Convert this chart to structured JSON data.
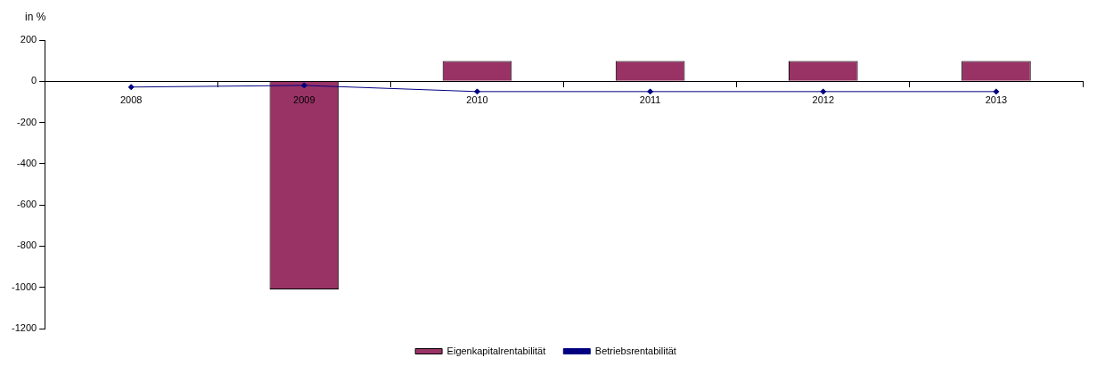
{
  "chart_data": {
    "type": "bar",
    "ylabel": "in %",
    "categories": [
      "2008",
      "2009",
      "2010",
      "2011",
      "2012",
      "2013"
    ],
    "series": [
      {
        "name": "Eigenkapitalrentabilität",
        "color": "#993366",
        "values": [
          null,
          -1010,
          98,
          98,
          98,
          98
        ]
      },
      {
        "name": "Betriebsrentabilität",
        "type": "line",
        "color": "#000080",
        "values": [
          -28,
          -20,
          -50,
          -50,
          -50,
          -50
        ]
      }
    ],
    "ylim": [
      -1200,
      200
    ],
    "yticks": [
      -1200,
      -1000,
      -800,
      -600,
      -400,
      -200,
      0,
      200
    ],
    "grid": false,
    "legend": "bottom",
    "marker": "diamond",
    "line_style": "solid"
  }
}
